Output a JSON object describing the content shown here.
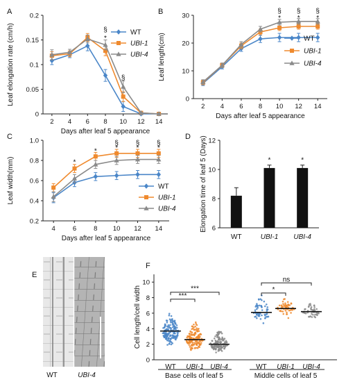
{
  "colors": {
    "WT": "#4a86c8",
    "UBI1": "#ef8a2e",
    "UBI4": "#8a8a8a",
    "bar": "#111111",
    "axis": "#222222"
  },
  "chart_data": [
    {
      "id": "A",
      "panel": "A",
      "type": "line",
      "xlabel": "Days after leaf 5 appearance",
      "ylabel": "Leaf elongation rate (cm/h)",
      "x": [
        2,
        4,
        6,
        8,
        10,
        12,
        14
      ],
      "xlim": [
        1,
        15
      ],
      "ylim": [
        0,
        0.2
      ],
      "yticks": [
        "0",
        "0.05",
        "0.1",
        "0.15",
        "0.2"
      ],
      "xticks": [
        "2",
        "4",
        "6",
        "8",
        "10",
        "12",
        "14"
      ],
      "series": [
        {
          "name": "WT",
          "italic": false,
          "color": "#4a86c8",
          "marker": "diamond",
          "values": [
            0.108,
            0.12,
            0.138,
            0.078,
            0.015,
            0.0,
            0.0
          ],
          "err": [
            0.008,
            0.006,
            0.01,
            0.012,
            0.01,
            0.002,
            0.002
          ]
        },
        {
          "name": "UBI-1",
          "italic": true,
          "color": "#ef8a2e",
          "marker": "square",
          "values": [
            0.118,
            0.122,
            0.155,
            0.128,
            0.035,
            0.002,
            0.0
          ],
          "err": [
            0.008,
            0.006,
            0.008,
            0.01,
            0.01,
            0.002,
            0.002
          ]
        },
        {
          "name": "UBI-4",
          "italic": true,
          "color": "#8a8a8a",
          "marker": "triangle",
          "values": [
            0.12,
            0.125,
            0.152,
            0.14,
            0.055,
            0.002,
            0.0
          ],
          "err": [
            0.01,
            0.006,
            0.008,
            0.01,
            0.012,
            0.002,
            0.002
          ]
        }
      ],
      "legend": "right",
      "annotations": [
        {
          "x": 8,
          "y": 0.155,
          "text": "*"
        },
        {
          "x": 8,
          "y": 0.172,
          "text": "§"
        },
        {
          "x": 10,
          "y": 0.075,
          "text": "§"
        }
      ]
    },
    {
      "id": "B",
      "panel": "B",
      "type": "line",
      "xlabel": "Days after leaf 5 appearance",
      "ylabel": "Leaf length(cm)",
      "x": [
        2,
        4,
        6,
        8,
        10,
        12,
        14
      ],
      "xlim": [
        1,
        15
      ],
      "ylim": [
        0,
        30
      ],
      "yticks": [
        "0",
        "10",
        "20",
        "30"
      ],
      "xticks": [
        "2",
        "4",
        "6",
        "8",
        "10",
        "12",
        "14"
      ],
      "series": [
        {
          "name": "WT",
          "italic": false,
          "color": "#4a86c8",
          "marker": "diamond",
          "values": [
            5.5,
            11.5,
            18,
            21.5,
            22,
            22,
            22
          ],
          "err": [
            0.8,
            0.8,
            1,
            1.3,
            1.5,
            1.5,
            1.5
          ]
        },
        {
          "name": "UBI-1",
          "italic": true,
          "color": "#ef8a2e",
          "marker": "square",
          "values": [
            5.8,
            12,
            19,
            24,
            25.5,
            26,
            26
          ],
          "err": [
            0.8,
            0.8,
            1,
            1,
            1,
            1,
            1
          ]
        },
        {
          "name": "UBI-4",
          "italic": true,
          "color": "#8a8a8a",
          "marker": "triangle",
          "values": [
            6,
            12,
            19.5,
            25,
            27.5,
            27.8,
            27.8
          ],
          "err": [
            0.8,
            0.8,
            1,
            1,
            1,
            1,
            1
          ]
        }
      ],
      "legend": "right",
      "annotations": [
        {
          "x": 10,
          "y": 29.2,
          "text": "*"
        },
        {
          "x": 10,
          "y": 31.8,
          "text": "§"
        },
        {
          "x": 12,
          "y": 29.2,
          "text": "*"
        },
        {
          "x": 12,
          "y": 31.8,
          "text": "§"
        },
        {
          "x": 14,
          "y": 29.2,
          "text": "*"
        },
        {
          "x": 14,
          "y": 31.8,
          "text": "§"
        }
      ]
    },
    {
      "id": "C",
      "panel": "C",
      "type": "line",
      "xlabel": "Days after leaf 5 appearance",
      "ylabel": "Leaf width(mm)",
      "x": [
        4,
        6,
        8,
        10,
        12,
        14
      ],
      "xlim": [
        3,
        15
      ],
      "ylim": [
        0.2,
        1.0
      ],
      "yticks": [
        "0.2",
        "0.4",
        "0.6",
        "0.8",
        "1.0"
      ],
      "xticks": [
        "4",
        "6",
        "8",
        "10",
        "12",
        "14"
      ],
      "series": [
        {
          "name": "WT",
          "italic": false,
          "color": "#4a86c8",
          "marker": "diamond",
          "values": [
            0.43,
            0.58,
            0.64,
            0.65,
            0.66,
            0.66
          ],
          "err": [
            0.05,
            0.04,
            0.04,
            0.04,
            0.04,
            0.04
          ]
        },
        {
          "name": "UBI-1",
          "italic": true,
          "color": "#ef8a2e",
          "marker": "square",
          "values": [
            0.53,
            0.72,
            0.84,
            0.87,
            0.87,
            0.87
          ],
          "err": [
            0.04,
            0.04,
            0.04,
            0.04,
            0.04,
            0.04
          ]
        },
        {
          "name": "UBI-4",
          "italic": true,
          "color": "#8a8a8a",
          "marker": "triangle",
          "values": [
            0.44,
            0.62,
            0.76,
            0.8,
            0.81,
            0.81
          ],
          "err": [
            0.05,
            0.04,
            0.04,
            0.04,
            0.04,
            0.04
          ]
        }
      ],
      "legend": "right",
      "annotations": [
        {
          "x": 6,
          "y": 0.79,
          "text": "*"
        },
        {
          "x": 8,
          "y": 0.9,
          "text": "*"
        },
        {
          "x": 10,
          "y": 0.93,
          "text": "*"
        },
        {
          "x": 10,
          "y": 0.98,
          "text": "§"
        },
        {
          "x": 12,
          "y": 0.93,
          "text": "*"
        },
        {
          "x": 12,
          "y": 0.98,
          "text": "§"
        },
        {
          "x": 14,
          "y": 0.93,
          "text": "*"
        },
        {
          "x": 14,
          "y": 0.98,
          "text": "§"
        }
      ]
    },
    {
      "id": "D",
      "panel": "D",
      "type": "bar",
      "ylabel": "Elongation time of leaf 5 (Days)",
      "categories": [
        "WT",
        "UBI-1",
        "UBI-4"
      ],
      "category_italic": [
        false,
        true,
        true
      ],
      "values": [
        8.2,
        10.1,
        10.1
      ],
      "err": [
        0.55,
        0.2,
        0.2
      ],
      "ylim": [
        6,
        12
      ],
      "yticks": [
        "6",
        "8",
        "10",
        "12"
      ],
      "annotations": [
        {
          "category": 1,
          "text": "*"
        },
        {
          "category": 2,
          "text": "*"
        }
      ]
    },
    {
      "id": "F",
      "panel": "F",
      "type": "scatter",
      "ylabel": "Cell length/cell width",
      "ylim": [
        0,
        11
      ],
      "yticks": [
        "0",
        "2",
        "4",
        "6",
        "8",
        "10"
      ],
      "categories": [
        "WT",
        "UBI-1",
        "UBI-4",
        "WT",
        "UBI-1",
        "UBI-4"
      ],
      "category_italic": [
        false,
        true,
        true,
        false,
        true,
        true
      ],
      "group_labels": [
        "Base cells of leaf 5",
        "Middle cells of leaf 5"
      ],
      "medians": [
        3.7,
        2.6,
        2.0,
        6.1,
        6.6,
        6.2
      ],
      "spread": [
        [
          1.5,
          6.5
        ],
        [
          1.0,
          5.5
        ],
        [
          0.8,
          4.5
        ],
        [
          4.5,
          9.0
        ],
        [
          5.2,
          8.5
        ],
        [
          5.0,
          8.0
        ]
      ],
      "n_points": [
        150,
        150,
        140,
        55,
        55,
        45
      ],
      "dot_colors": [
        "#4a86c8",
        "#ef8a2e",
        "#8a8a8a",
        "#4a86c8",
        "#ef8a2e",
        "#8a8a8a"
      ],
      "comparisons": [
        {
          "from": 0,
          "to": 1,
          "y": 7.8,
          "label": "***"
        },
        {
          "from": 0,
          "to": 2,
          "y": 8.7,
          "label": "***"
        },
        {
          "from": 3,
          "to": 4,
          "y": 8.6,
          "label": "*"
        },
        {
          "from": 3,
          "to": 5,
          "y": 9.9,
          "label": "ns"
        }
      ]
    }
  ],
  "panel_e": {
    "panel": "E",
    "labels": [
      "WT",
      "UBI-4"
    ],
    "label_italic": [
      false,
      true
    ]
  }
}
